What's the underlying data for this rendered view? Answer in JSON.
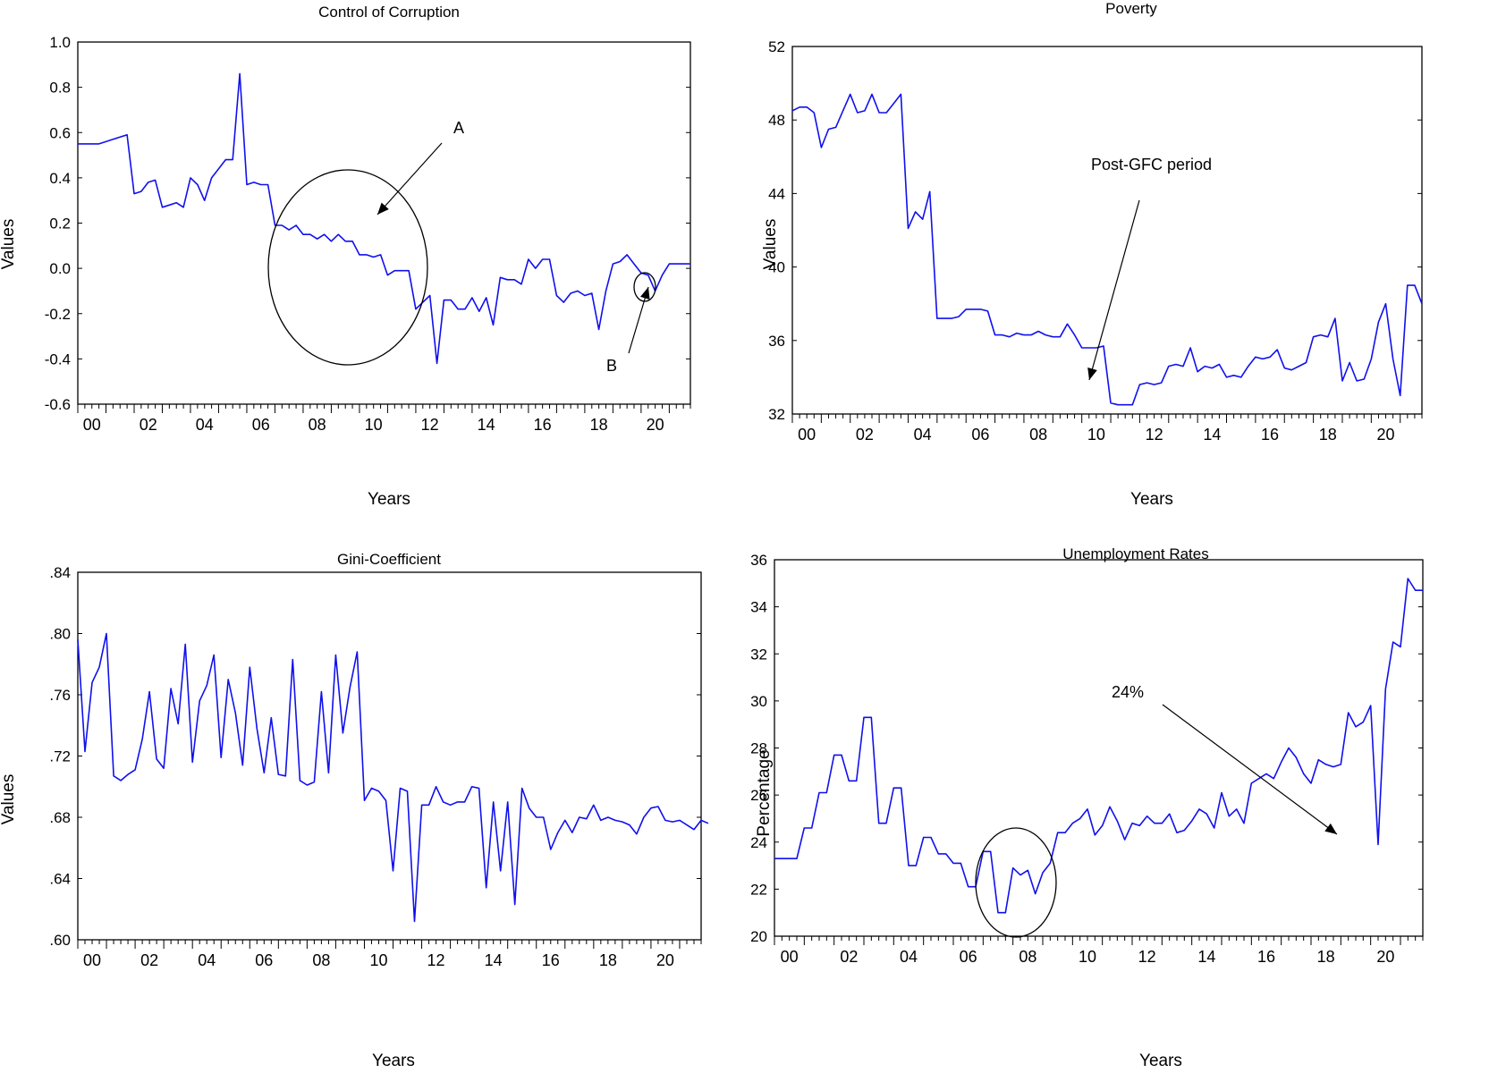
{
  "chart_data": [
    {
      "id": "corruption",
      "type": "line",
      "title": "Control of Corruption",
      "xlabel": "Years",
      "ylabel": "Values",
      "ylim": [
        -0.6,
        1.0
      ],
      "yticks": [
        1.0,
        0.8,
        0.6,
        0.4,
        0.2,
        0.0,
        -0.2,
        -0.4,
        -0.6
      ],
      "ytick_labels": [
        "1.0",
        "0.8",
        "0.6",
        "0.4",
        "0.2",
        "0.0",
        "-0.2",
        "-0.4",
        "-0.6"
      ],
      "xlim": [
        2000.0,
        2021.75
      ],
      "xticks": [
        2000,
        2002,
        2004,
        2006,
        2008,
        2010,
        2012,
        2014,
        2016,
        2018,
        2020
      ],
      "xtick_labels": [
        "00",
        "02",
        "04",
        "06",
        "08",
        "10",
        "12",
        "14",
        "16",
        "18",
        "20"
      ],
      "color": "#1010ee",
      "series": [
        {
          "name": "Control of Corruption",
          "x_start": 2000.0,
          "x_step": 0.25,
          "values": [
            0.55,
            0.55,
            0.55,
            0.55,
            0.56,
            0.57,
            0.58,
            0.59,
            0.33,
            0.34,
            0.38,
            0.39,
            0.27,
            0.28,
            0.29,
            0.27,
            0.4,
            0.37,
            0.3,
            0.4,
            0.44,
            0.48,
            0.48,
            0.86,
            0.37,
            0.38,
            0.37,
            0.37,
            0.19,
            0.19,
            0.17,
            0.19,
            0.15,
            0.15,
            0.13,
            0.15,
            0.12,
            0.15,
            0.12,
            0.12,
            0.06,
            0.06,
            0.05,
            0.06,
            -0.03,
            -0.01,
            -0.01,
            -0.01,
            -0.18,
            -0.15,
            -0.12,
            -0.42,
            -0.14,
            -0.14,
            -0.18,
            -0.18,
            -0.13,
            -0.19,
            -0.13,
            -0.25,
            -0.04,
            -0.05,
            -0.05,
            -0.07,
            0.04,
            0.0,
            0.04,
            0.04,
            -0.12,
            -0.15,
            -0.11,
            -0.1,
            -0.12,
            -0.11,
            -0.27,
            -0.1,
            0.02,
            0.03,
            0.06,
            0.02,
            -0.02,
            -0.03,
            -0.1,
            -0.03,
            0.02,
            0.02,
            0.02,
            0.02
          ]
        }
      ],
      "annotations": [
        {
          "label": "A",
          "kind": "ellipse-arrow"
        },
        {
          "label": "B",
          "kind": "ellipse-arrow"
        }
      ]
    },
    {
      "id": "poverty",
      "type": "line",
      "title": "Poverty",
      "xlabel": "Years",
      "ylabel": "Values",
      "ylim": [
        32,
        52
      ],
      "yticks": [
        52,
        48,
        44,
        40,
        36,
        32
      ],
      "ytick_labels": [
        "52",
        "48",
        "44",
        "40",
        "36",
        "32"
      ],
      "xlim": [
        2000.0,
        2021.75
      ],
      "xticks": [
        2000,
        2002,
        2004,
        2006,
        2008,
        2010,
        2012,
        2014,
        2016,
        2018,
        2020
      ],
      "xtick_labels": [
        "00",
        "02",
        "04",
        "06",
        "08",
        "10",
        "12",
        "14",
        "16",
        "18",
        "20"
      ],
      "color": "#1010ee",
      "series": [
        {
          "name": "Poverty",
          "x_start": 2000.0,
          "x_step": 0.25,
          "values": [
            48.5,
            48.7,
            48.7,
            48.4,
            46.5,
            47.5,
            47.6,
            48.5,
            49.4,
            48.4,
            48.5,
            49.4,
            48.4,
            48.4,
            48.9,
            49.4,
            42.1,
            43.0,
            42.6,
            44.1,
            37.2,
            37.2,
            37.2,
            37.3,
            37.7,
            37.7,
            37.7,
            37.6,
            36.3,
            36.3,
            36.2,
            36.4,
            36.3,
            36.3,
            36.5,
            36.3,
            36.2,
            36.2,
            36.9,
            36.3,
            35.6,
            35.6,
            35.6,
            35.7,
            32.6,
            32.5,
            32.5,
            32.5,
            33.6,
            33.7,
            33.6,
            33.7,
            34.6,
            34.7,
            34.6,
            35.6,
            34.3,
            34.6,
            34.5,
            34.7,
            34.0,
            34.1,
            34.0,
            34.6,
            35.1,
            35.0,
            35.1,
            35.5,
            34.5,
            34.4,
            34.6,
            34.8,
            36.2,
            36.3,
            36.2,
            37.2,
            33.8,
            34.8,
            33.8,
            33.9,
            35.0,
            37.0,
            38.0,
            35.0,
            33.0,
            39.0,
            39.0,
            38.0
          ]
        }
      ],
      "annotations": [
        {
          "label": "Post-GFC period",
          "kind": "arrow"
        }
      ]
    },
    {
      "id": "gini",
      "type": "line",
      "title": "Gini-Coefficient",
      "xlabel": "Years",
      "ylabel": "Values",
      "ylim": [
        0.6,
        0.84
      ],
      "yticks": [
        0.84,
        0.8,
        0.76,
        0.72,
        0.68,
        0.64,
        0.6
      ],
      "ytick_labels": [
        ".84",
        ".80",
        ".76",
        ".72",
        ".68",
        ".64",
        ".60"
      ],
      "xlim": [
        2000.0,
        2021.75
      ],
      "xticks": [
        2000,
        2002,
        2004,
        2006,
        2008,
        2010,
        2012,
        2014,
        2016,
        2018,
        2020
      ],
      "xtick_labels": [
        "00",
        "02",
        "04",
        "06",
        "08",
        "10",
        "12",
        "14",
        "16",
        "18",
        "20"
      ],
      "color": "#1010ee",
      "series": [
        {
          "name": "Gini-Coefficient",
          "x_start": 2000.0,
          "x_step": 0.25,
          "values": [
            0.796,
            0.723,
            0.768,
            0.778,
            0.8,
            0.707,
            0.704,
            0.708,
            0.711,
            0.731,
            0.762,
            0.718,
            0.712,
            0.764,
            0.741,
            0.793,
            0.716,
            0.756,
            0.766,
            0.786,
            0.719,
            0.77,
            0.748,
            0.714,
            0.778,
            0.738,
            0.709,
            0.745,
            0.708,
            0.707,
            0.783,
            0.704,
            0.701,
            0.703,
            0.762,
            0.709,
            0.786,
            0.735,
            0.765,
            0.788,
            0.691,
            0.699,
            0.697,
            0.691,
            0.645,
            0.699,
            0.697,
            0.612,
            0.688,
            0.688,
            0.7,
            0.69,
            0.688,
            0.69,
            0.69,
            0.7,
            0.699,
            0.634,
            0.69,
            0.645,
            0.69,
            0.623,
            0.699,
            0.686,
            0.68,
            0.68,
            0.659,
            0.67,
            0.678,
            0.67,
            0.68,
            0.679,
            0.688,
            0.678,
            0.68,
            0.678,
            0.677,
            0.675,
            0.669,
            0.68,
            0.686,
            0.687,
            0.678,
            0.677,
            0.678,
            0.675,
            0.672,
            0.678,
            0.676
          ]
        }
      ],
      "annotations": []
    },
    {
      "id": "unemployment",
      "type": "line",
      "title": "Unemployment Rates",
      "xlabel": "Years",
      "ylabel": "Percentage",
      "ylim": [
        20,
        36
      ],
      "yticks": [
        36,
        34,
        32,
        30,
        28,
        26,
        24,
        22,
        20
      ],
      "ytick_labels": [
        "36",
        "34",
        "32",
        "30",
        "28",
        "26",
        "24",
        "22",
        "20"
      ],
      "xlim": [
        2000.0,
        2021.75
      ],
      "xticks": [
        2000,
        2002,
        2004,
        2006,
        2008,
        2010,
        2012,
        2014,
        2016,
        2018,
        2020
      ],
      "xtick_labels": [
        "00",
        "02",
        "04",
        "06",
        "08",
        "10",
        "12",
        "14",
        "16",
        "18",
        "20"
      ],
      "color": "#1010ee",
      "series": [
        {
          "name": "Unemployment Rates",
          "x_start": 2000.0,
          "x_step": 0.25,
          "values": [
            23.3,
            23.3,
            23.3,
            23.3,
            24.6,
            24.6,
            26.1,
            26.1,
            27.7,
            27.7,
            26.6,
            26.6,
            29.3,
            29.3,
            24.8,
            24.8,
            26.3,
            26.3,
            23.0,
            23.0,
            24.2,
            24.2,
            23.5,
            23.5,
            23.1,
            23.1,
            22.1,
            22.1,
            23.6,
            23.6,
            21.0,
            21.0,
            22.9,
            22.6,
            22.8,
            21.8,
            22.7,
            23.1,
            24.4,
            24.4,
            24.8,
            25.0,
            25.4,
            24.3,
            24.7,
            25.5,
            24.9,
            24.1,
            24.8,
            24.7,
            25.1,
            24.8,
            24.8,
            25.2,
            24.4,
            24.5,
            24.9,
            25.4,
            25.2,
            24.6,
            26.1,
            25.1,
            25.4,
            24.8,
            26.5,
            26.7,
            26.9,
            26.7,
            27.4,
            28.0,
            27.6,
            26.9,
            26.5,
            27.5,
            27.3,
            27.2,
            27.3,
            29.5,
            28.9,
            29.1,
            29.8,
            23.9,
            30.5,
            32.5,
            32.3,
            35.2,
            34.7,
            34.7
          ]
        }
      ],
      "annotations": [
        {
          "label": "24%",
          "kind": "arrow"
        },
        {
          "label": "",
          "kind": "ellipse"
        }
      ]
    }
  ]
}
